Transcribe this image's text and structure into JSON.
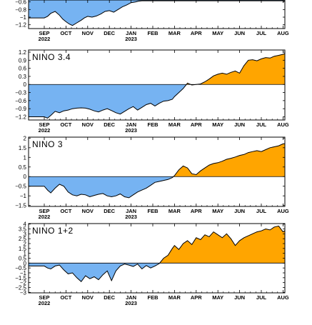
{
  "colors": {
    "negative": "#76b3f2",
    "positive": "#ffa500",
    "line": "#000000",
    "zero": "#000000"
  },
  "months": [
    "SEP",
    "OCT",
    "NOV",
    "DEC",
    "JAN",
    "FEB",
    "MAR",
    "APR",
    "MAY",
    "JUN",
    "JUL",
    "AUG"
  ],
  "years": [
    {
      "label": "2022",
      "month": "SEP"
    },
    {
      "label": "2023",
      "month": "JAN"
    }
  ],
  "chart_data": [
    {
      "type": "area",
      "title": "",
      "ylim": [
        -1.3,
        -0.55
      ],
      "yticks": [
        -0.6,
        -0.8,
        -1,
        -1.2
      ],
      "ytick_labels": [
        "−0.6",
        "−0.8",
        "−1",
        "−1.2"
      ],
      "x": [
        0,
        0.15,
        0.3,
        0.5,
        0.7,
        0.85,
        1.0,
        1.15,
        1.3,
        1.5,
        1.7,
        1.85,
        2.0,
        2.2,
        2.4,
        2.6,
        2.8,
        3.0,
        3.2,
        3.4,
        3.6,
        3.8,
        4.0,
        4.2,
        4.35,
        4.5
      ],
      "values": [
        -1.02,
        -0.98,
        -0.9,
        -0.85,
        -0.95,
        -1.05,
        -1.12,
        -1.18,
        -1.22,
        -1.15,
        -1.08,
        -1.02,
        -0.98,
        -1.0,
        -0.97,
        -0.92,
        -0.85,
        -0.83,
        -0.87,
        -0.8,
        -0.73,
        -0.68,
        -0.62,
        -0.6,
        -0.58,
        -0.57
      ]
    },
    {
      "type": "area",
      "title": "NINO 3.4",
      "ylim": [
        -1.32,
        1.28
      ],
      "yticks": [
        1.2,
        0.9,
        0.6,
        0.3,
        0,
        -0.3,
        -0.6,
        -0.9,
        -1.2
      ],
      "ytick_labels": [
        "1.2",
        "0.9",
        "0.6",
        "0.3",
        "0",
        "−0.3",
        "−0.6",
        "−0.9",
        "−1.2"
      ],
      "x": [
        0,
        0.15,
        0.3,
        0.5,
        0.7,
        0.9,
        1.1,
        1.3,
        1.5,
        1.7,
        1.9,
        2.1,
        2.3,
        2.5,
        2.7,
        2.9,
        3.1,
        3.3,
        3.5,
        3.7,
        3.9,
        4.1,
        4.3,
        4.5,
        4.7,
        4.9,
        5.1,
        5.3,
        5.5,
        5.7,
        5.9,
        6.0,
        6.2,
        6.4,
        6.6,
        6.8,
        7.0,
        7.2,
        7.4,
        7.6,
        7.8,
        8.0,
        8.2,
        8.4,
        8.6,
        8.8,
        9.0,
        9.2,
        9.4,
        9.6,
        9.8,
        10.0,
        10.2,
        10.4,
        10.6,
        10.8,
        11.0,
        11.2,
        11.3
      ],
      "values": [
        -1.2,
        -1.25,
        -1.15,
        -1.0,
        -1.05,
        -0.98,
        -0.95,
        -0.9,
        -0.88,
        -0.87,
        -0.88,
        -0.92,
        -0.98,
        -1.02,
        -0.95,
        -0.9,
        -0.97,
        -1.05,
        -1.1,
        -1.0,
        -0.9,
        -0.82,
        -0.95,
        -0.85,
        -0.75,
        -0.7,
        -0.8,
        -0.7,
        -0.62,
        -0.6,
        -0.55,
        -0.45,
        -0.3,
        -0.15,
        0.05,
        -0.02,
        0.0,
        0.02,
        0.1,
        0.2,
        0.32,
        0.38,
        0.42,
        0.38,
        0.45,
        0.5,
        0.42,
        0.7,
        0.9,
        0.92,
        0.88,
        0.95,
        1.0,
        0.98,
        1.05,
        1.08,
        1.12,
        1.18,
        1.15
      ]
    },
    {
      "type": "area",
      "title": "NINO 3",
      "ylim": [
        -1.55,
        2.05
      ],
      "yticks": [
        2,
        1.5,
        1,
        0.5,
        0,
        -0.5,
        -1,
        -1.5
      ],
      "ytick_labels": [
        "2",
        "1.5",
        "1",
        "0.5",
        "0",
        "−0.5",
        "−1",
        "−1.5"
      ],
      "x": [
        0,
        0.15,
        0.3,
        0.5,
        0.7,
        0.9,
        1.1,
        1.3,
        1.5,
        1.7,
        1.9,
        2.1,
        2.3,
        2.5,
        2.7,
        2.9,
        3.1,
        3.3,
        3.5,
        3.7,
        3.9,
        4.1,
        4.3,
        4.5,
        4.7,
        4.9,
        5.1,
        5.3,
        5.5,
        5.7,
        5.9,
        6.0,
        6.2,
        6.4,
        6.6,
        6.8,
        7.0,
        7.2,
        7.4,
        7.6,
        7.8,
        8.0,
        8.2,
        8.4,
        8.6,
        8.8,
        9.0,
        9.2,
        9.4,
        9.6,
        9.8,
        10.0,
        10.2,
        10.4,
        10.6,
        10.8,
        11.0,
        11.2,
        11.3
      ],
      "values": [
        -0.5,
        -0.7,
        -0.85,
        -0.6,
        -0.4,
        -0.5,
        -0.8,
        -0.95,
        -1.0,
        -0.92,
        -0.95,
        -1.05,
        -0.98,
        -0.92,
        -0.88,
        -1.0,
        -1.05,
        -1.0,
        -0.9,
        -1.05,
        -1.1,
        -0.95,
        -0.8,
        -0.7,
        -0.6,
        -0.45,
        -0.3,
        -0.25,
        -0.2,
        -0.15,
        -0.05,
        0.05,
        0.35,
        0.55,
        0.45,
        0.15,
        0.1,
        0.3,
        0.45,
        0.6,
        0.68,
        0.72,
        0.8,
        0.9,
        0.95,
        1.02,
        1.1,
        1.15,
        1.25,
        1.3,
        1.35,
        1.3,
        1.4,
        1.5,
        1.55,
        1.6,
        1.7,
        1.72,
        1.75
      ]
    },
    {
      "type": "area",
      "title": "NINO 1+2",
      "ylim": [
        -3.05,
        4.05
      ],
      "yticks": [
        4,
        3.5,
        3,
        2.5,
        2,
        1.5,
        1,
        0.5,
        0,
        -0.5,
        -1,
        -1.5,
        -2,
        -2.5,
        -3
      ],
      "ytick_labels": [
        "4",
        "3.5",
        "3",
        "2.5",
        "2",
        "1.5",
        "1",
        "0.5",
        "0",
        "−0.5",
        "−1",
        "−1.5",
        "−2",
        "−2.5",
        "−3"
      ],
      "x": [
        0,
        0.15,
        0.3,
        0.5,
        0.7,
        0.9,
        1.1,
        1.3,
        1.5,
        1.7,
        1.9,
        2.1,
        2.3,
        2.5,
        2.7,
        2.9,
        3.1,
        3.3,
        3.5,
        3.7,
        3.9,
        4.1,
        4.3,
        4.5,
        4.7,
        4.9,
        5.1,
        5.3,
        5.5,
        5.7,
        5.9,
        6.0,
        6.2,
        6.4,
        6.6,
        6.8,
        7.0,
        7.2,
        7.4,
        7.6,
        7.8,
        8.0,
        8.2,
        8.4,
        8.6,
        8.8,
        9.0,
        9.2,
        9.4,
        9.6,
        9.8,
        10.0,
        10.2,
        10.4,
        10.6,
        10.8,
        11.0,
        11.2,
        11.3
      ],
      "values": [
        -0.3,
        -0.5,
        -0.6,
        -0.3,
        -0.2,
        -0.7,
        -1.1,
        -1.0,
        -1.5,
        -1.9,
        -1.3,
        -1.6,
        -1.4,
        -1.7,
        -1.2,
        -0.8,
        -1.8,
        -0.8,
        -0.3,
        -0.1,
        -0.2,
        -0.35,
        -0.1,
        -0.6,
        -0.25,
        -0.5,
        -0.3,
        -0.05,
        0.5,
        0.8,
        1.5,
        1.8,
        1.4,
        2.0,
        2.3,
        1.9,
        2.6,
        2.4,
        2.9,
        2.7,
        3.2,
        2.9,
        2.6,
        3.0,
        2.5,
        1.8,
        2.3,
        2.6,
        2.8,
        3.0,
        3.2,
        3.3,
        3.5,
        3.4,
        3.7,
        3.8,
        3.2,
        3.5,
        3.6
      ]
    }
  ]
}
